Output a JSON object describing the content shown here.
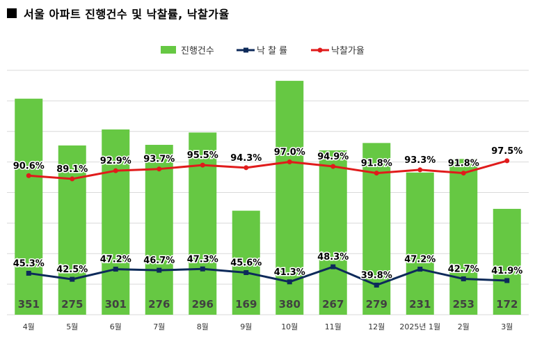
{
  "title": "서울 아파트 진행건수 및 낙찰률, 낙찰가율",
  "colors": {
    "bars": "#66c843",
    "rate": "#0d2a5a",
    "price_rate": "#e01b1b",
    "grid": "#d9d9d9",
    "bar_label": "#404040"
  },
  "chart_data": {
    "type": "bar",
    "categories": [
      "4월",
      "5월",
      "6월",
      "7월",
      "8월",
      "9월",
      "10월",
      "11월",
      "12월",
      "2025년 1월",
      "2월",
      "3월"
    ],
    "series": [
      {
        "name": "진행건수",
        "type": "bar",
        "values": [
          351,
          275,
          301,
          276,
          296,
          169,
          380,
          267,
          279,
          231,
          253,
          172
        ],
        "labels": [
          "351",
          "275",
          "301",
          "276",
          "296",
          "169",
          "380",
          "267",
          "279",
          "231",
          "253",
          "172"
        ]
      },
      {
        "name": "낙 찰 률",
        "type": "line",
        "values": [
          45.3,
          42.5,
          47.2,
          46.7,
          47.3,
          45.6,
          41.3,
          48.3,
          39.8,
          47.2,
          42.7,
          41.9
        ],
        "labels": [
          "45.3%",
          "42.5%",
          "47.2%",
          "46.7%",
          "47.3%",
          "45.6%",
          "41.3%",
          "48.3%",
          "39.8%",
          "47.2%",
          "42.7%",
          "41.9%"
        ]
      },
      {
        "name": "낙찰가율",
        "type": "line",
        "values": [
          90.6,
          89.1,
          92.9,
          93.7,
          95.5,
          94.3,
          97.0,
          94.9,
          91.8,
          93.3,
          91.8,
          97.5
        ],
        "labels": [
          "90.6%",
          "89.1%",
          "92.9%",
          "93.7%",
          "95.5%",
          "94.3%",
          "97.0%",
          "94.9%",
          "91.8%",
          "93.3%",
          "91.8%",
          "97.5%"
        ]
      }
    ],
    "legend_position": "top-center",
    "grid": true
  }
}
